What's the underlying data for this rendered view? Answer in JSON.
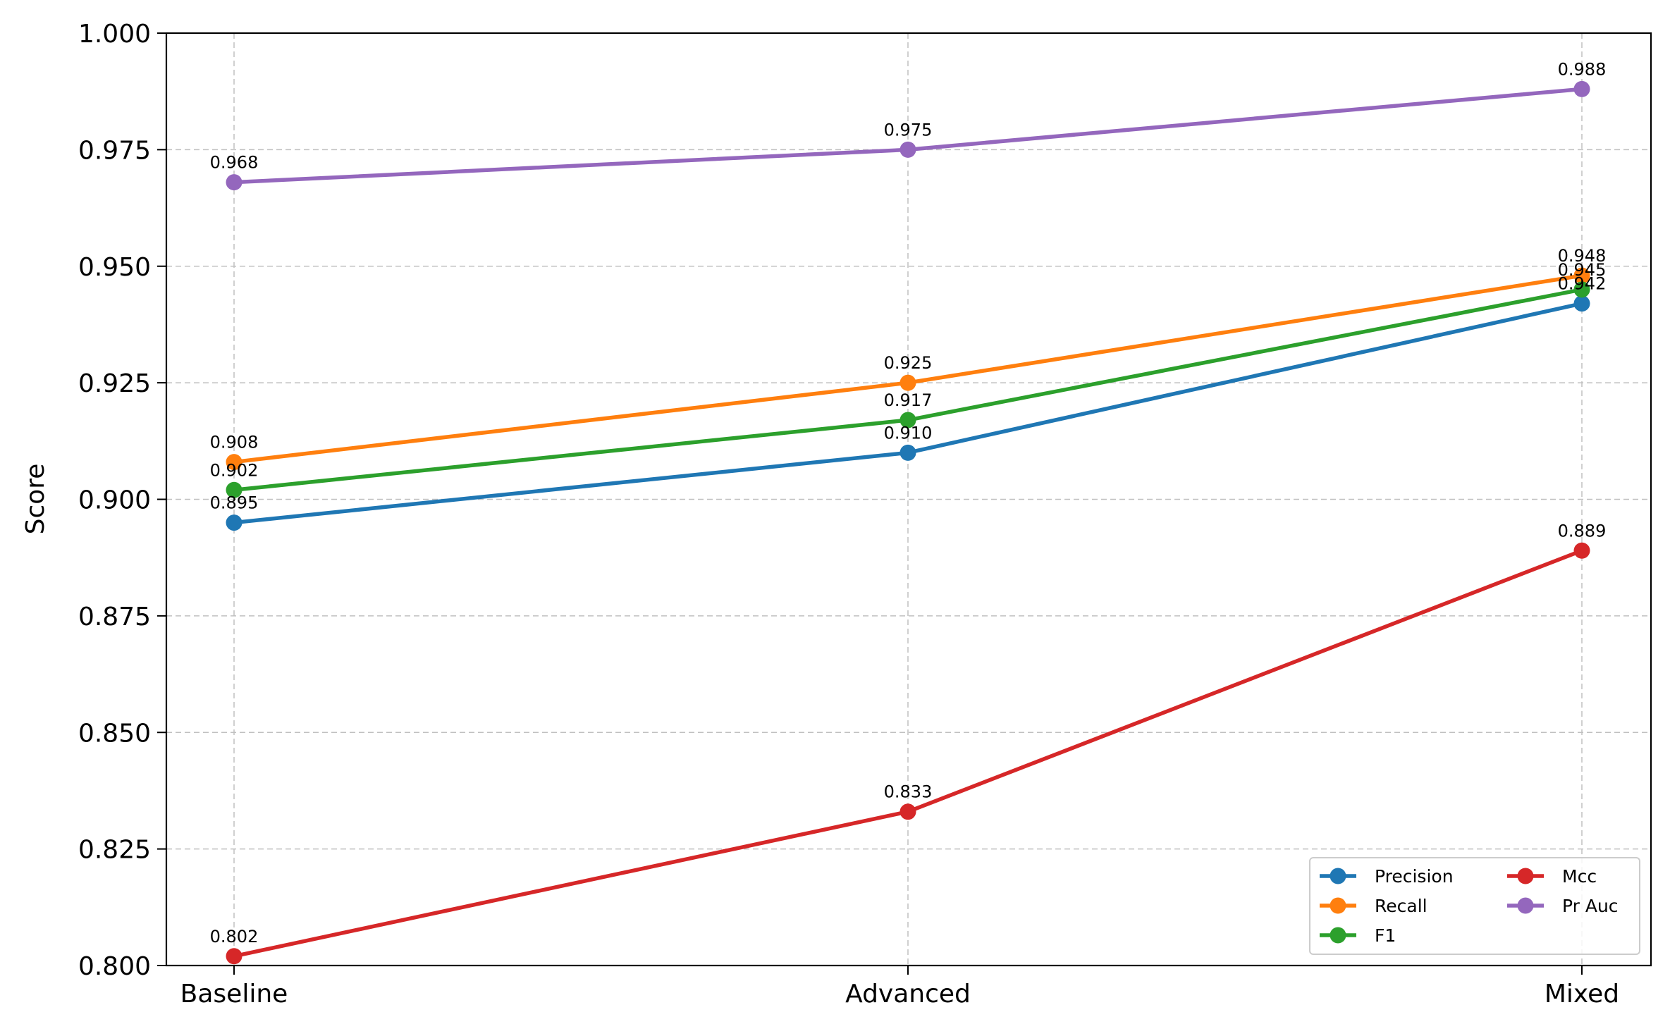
{
  "chart_data": {
    "type": "line",
    "categories": [
      "Baseline",
      "Advanced",
      "Mixed"
    ],
    "series": [
      {
        "name": "Precision",
        "values": [
          0.895,
          0.91,
          0.942
        ],
        "labels": [
          "0.895",
          "0.910",
          "0.942"
        ],
        "color": "#1f77b4"
      },
      {
        "name": "Recall",
        "values": [
          0.908,
          0.925,
          0.948
        ],
        "labels": [
          "0.908",
          "0.925",
          "0.948"
        ],
        "color": "#ff7f0e"
      },
      {
        "name": "F1",
        "values": [
          0.902,
          0.917,
          0.945
        ],
        "labels": [
          "0.902",
          "0.917",
          "0.945"
        ],
        "color": "#2ca02c"
      },
      {
        "name": "Mcc",
        "values": [
          0.802,
          0.833,
          0.889
        ],
        "labels": [
          "0.802",
          "0.833",
          "0.889"
        ],
        "color": "#d62728"
      },
      {
        "name": "Pr Auc",
        "values": [
          0.968,
          0.975,
          0.988
        ],
        "labels": [
          "0.968",
          "0.975",
          "0.988"
        ],
        "color": "#9467bd"
      }
    ],
    "title": "",
    "xlabel": "",
    "ylabel": "Score",
    "ylim": [
      0.8,
      1.0
    ],
    "yticks": [
      "0.800",
      "0.825",
      "0.850",
      "0.875",
      "0.900",
      "0.925",
      "0.950",
      "0.975",
      "1.000"
    ],
    "grid": true,
    "legend_position": "bottom-right",
    "legend_columns": 2
  }
}
